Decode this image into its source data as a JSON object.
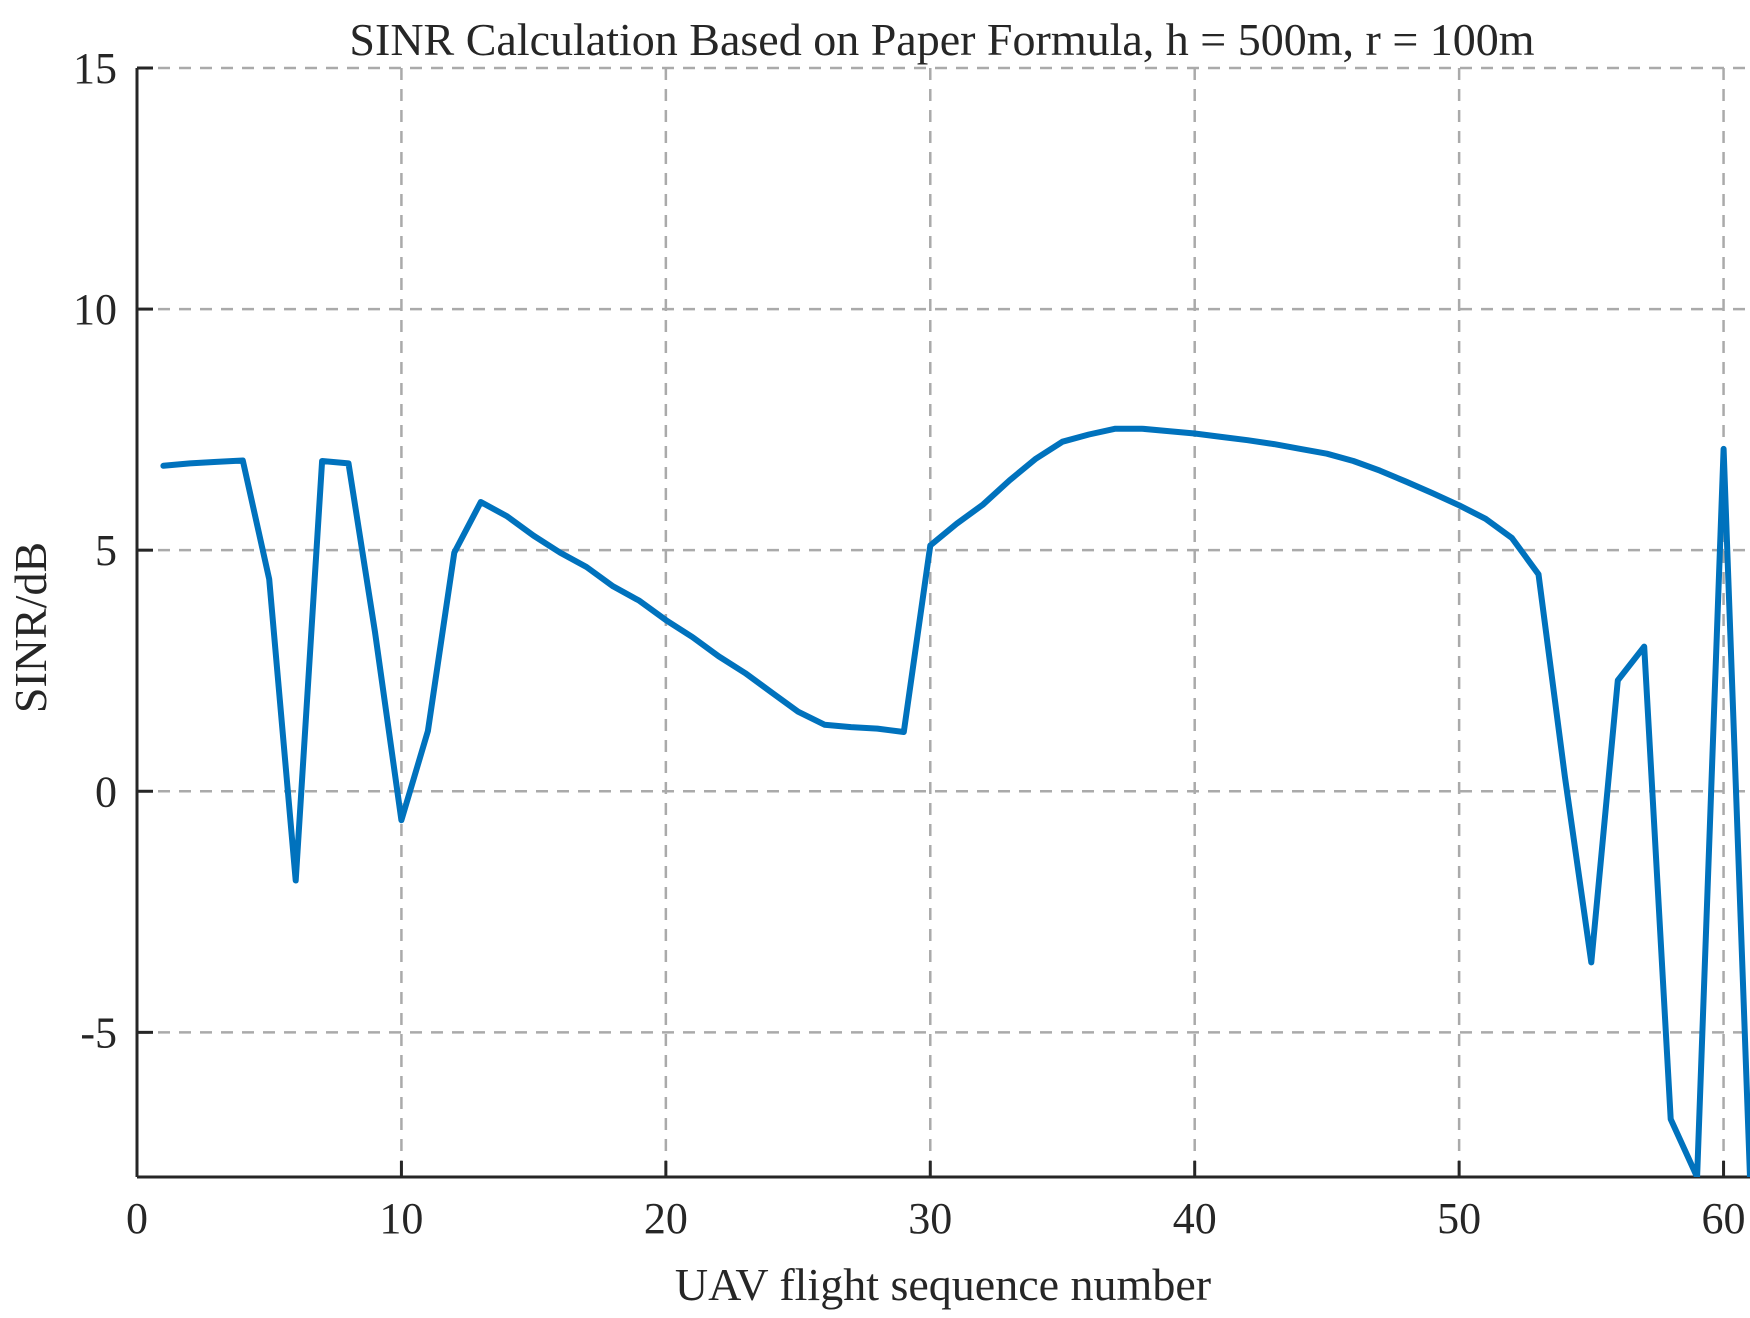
{
  "chart_data": {
    "type": "line",
    "title": "SINR Calculation Based on Paper Formula, h = 500m, r = 100m",
    "xlabel": "UAV flight sequence number",
    "ylabel": "SINR/dB",
    "xlim": [
      0,
      61
    ],
    "ylim": [
      -8,
      15
    ],
    "xticks": [
      0,
      10,
      20,
      30,
      40,
      50,
      60
    ],
    "xtick_labels": [
      "0",
      "10",
      "20",
      "30",
      "40",
      "50",
      "60"
    ],
    "yticks": [
      -5,
      0,
      5,
      10,
      15
    ],
    "ytick_labels": [
      "-5",
      "0",
      "5",
      "10",
      "15"
    ],
    "grid": true,
    "grid_style": "dashed",
    "series": [
      {
        "color": "#0072BD",
        "x": [
          1,
          2,
          3,
          4,
          5,
          6,
          7,
          8,
          9,
          10,
          11,
          12,
          13,
          14,
          15,
          16,
          17,
          18,
          19,
          20,
          21,
          22,
          23,
          24,
          25,
          26,
          27,
          28,
          29,
          30,
          31,
          32,
          33,
          34,
          35,
          36,
          37,
          38,
          39,
          40,
          41,
          42,
          43,
          44,
          45,
          46,
          47,
          48,
          49,
          50,
          51,
          52,
          53,
          54,
          55,
          56,
          57,
          58,
          59,
          60,
          61
        ],
        "y": [
          6.75,
          6.8,
          6.83,
          6.86,
          4.4,
          -1.85,
          6.85,
          6.8,
          3.3,
          -0.6,
          1.25,
          4.95,
          6.0,
          5.7,
          5.3,
          4.95,
          4.65,
          4.25,
          3.95,
          3.55,
          3.2,
          2.8,
          2.45,
          2.05,
          1.65,
          1.38,
          1.33,
          1.3,
          1.23,
          5.1,
          5.55,
          5.95,
          6.45,
          6.9,
          7.25,
          7.4,
          7.52,
          7.52,
          7.47,
          7.42,
          7.35,
          7.28,
          7.2,
          7.1,
          7.0,
          6.85,
          6.65,
          6.42,
          6.18,
          5.93,
          5.65,
          5.25,
          4.5,
          0.3,
          -3.55,
          2.3,
          3.0,
          -6.8,
          -8.0,
          7.1,
          -8.0
        ]
      }
    ]
  }
}
